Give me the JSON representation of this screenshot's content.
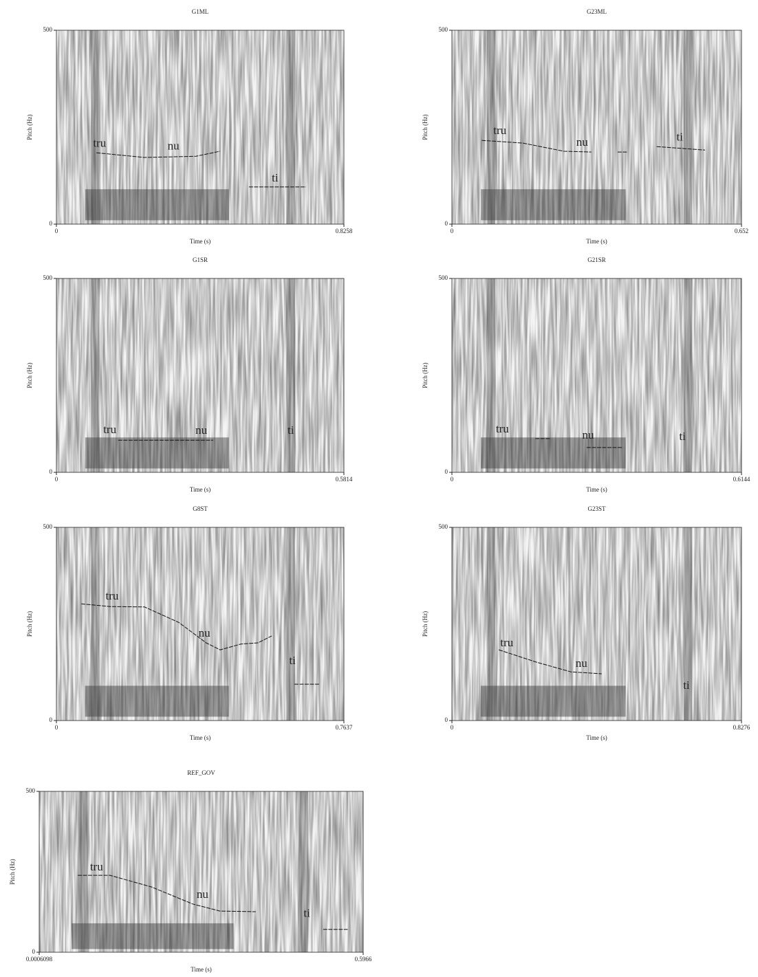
{
  "chart_data": [
    {
      "type": "line",
      "title": "G1ML",
      "xlabel": "Time (s)",
      "ylabel": "Pitch (Hz)",
      "xlim": [
        0,
        0.8258
      ],
      "xticks": [
        0,
        0.8258
      ],
      "ylim": [
        0,
        500
      ],
      "yticks": [
        0,
        500
      ],
      "x": [
        0.115,
        0.253,
        0.401,
        0.47,
        null,
        0.553,
        0.717
      ],
      "values": [
        184,
        172,
        175,
        188,
        null,
        96,
        96
      ],
      "annotations": [
        {
          "text": "tru",
          "x": 0.124,
          "y": 206
        },
        {
          "text": "nu",
          "x": 0.336,
          "y": 199
        },
        {
          "text": "ti",
          "x": 0.628,
          "y": 117
        }
      ]
    },
    {
      "type": "line",
      "title": "G23ML",
      "xlabel": "Time (s)",
      "ylabel": "Pitch (Hz)",
      "xlim": [
        0,
        0.652
      ],
      "xticks": [
        0,
        0.652
      ],
      "ylim": [
        0,
        500
      ],
      "yticks": [
        0,
        500
      ],
      "x": [
        0.067,
        0.16,
        0.252,
        0.314,
        null,
        0.373,
        0.395,
        null,
        0.461,
        0.57
      ],
      "values": [
        216,
        209,
        188,
        186,
        null,
        186,
        186,
        null,
        200,
        191
      ],
      "annotations": [
        {
          "text": "tru",
          "x": 0.108,
          "y": 239
        },
        {
          "text": "nu",
          "x": 0.293,
          "y": 209
        },
        {
          "text": "ti",
          "x": 0.513,
          "y": 222
        }
      ]
    },
    {
      "type": "line",
      "title": "G1SR",
      "xlabel": "Time (s)",
      "ylabel": "Pitch (Hz)",
      "xlim": [
        0,
        0.5814
      ],
      "xticks": [
        0,
        0.5814
      ],
      "ylim": [
        0,
        500
      ],
      "yticks": [
        0,
        500
      ],
      "x": [
        0.125,
        0.22,
        0.317
      ],
      "values": [
        83,
        83,
        83
      ],
      "annotations": [
        {
          "text": "tru",
          "x": 0.108,
          "y": 108
        },
        {
          "text": "nu",
          "x": 0.293,
          "y": 106
        },
        {
          "text": "ti",
          "x": 0.474,
          "y": 106
        }
      ]
    },
    {
      "type": "line",
      "title": "G21SR",
      "xlabel": "Time (s)",
      "ylabel": "Pitch (Hz)",
      "xlim": [
        0,
        0.6144
      ],
      "xticks": [
        0,
        0.6144
      ],
      "ylim": [
        0,
        500
      ],
      "yticks": [
        0,
        500
      ],
      "x": [
        0.177,
        0.209,
        null,
        0.286,
        0.363
      ],
      "values": [
        87,
        87,
        null,
        64,
        64
      ],
      "annotations": [
        {
          "text": "tru",
          "x": 0.107,
          "y": 110
        },
        {
          "text": "nu",
          "x": 0.289,
          "y": 94
        },
        {
          "text": "ti",
          "x": 0.489,
          "y": 90
        }
      ]
    },
    {
      "type": "line",
      "title": "G8ST",
      "xlabel": "Time (s)",
      "ylabel": "Pitch (Hz)",
      "xlim": [
        0,
        0.7637
      ],
      "xticks": [
        0,
        0.7637
      ],
      "ylim": [
        0,
        500
      ],
      "yticks": [
        0,
        500
      ],
      "x": [
        0.066,
        0.143,
        0.234,
        0.325,
        0.398,
        0.435,
        0.49,
        0.535,
        0.572,
        null,
        0.632,
        0.7
      ],
      "values": [
        302,
        295,
        294,
        254,
        201,
        183,
        198,
        201,
        219,
        null,
        94,
        94
      ],
      "annotations": [
        {
          "text": "tru",
          "x": 0.148,
          "y": 320
        },
        {
          "text": "nu",
          "x": 0.393,
          "y": 224
        },
        {
          "text": "ti",
          "x": 0.627,
          "y": 153
        }
      ]
    },
    {
      "type": "line",
      "title": "G23ST",
      "xlabel": "Time (s)",
      "ylabel": "Pitch (Hz)",
      "xlim": [
        0,
        0.8276
      ],
      "xticks": [
        0,
        0.8276
      ],
      "ylim": [
        0,
        500
      ],
      "yticks": [
        0,
        500
      ],
      "x": [
        0.134,
        0.242,
        0.34,
        0.428
      ],
      "values": [
        183,
        151,
        126,
        121
      ],
      "annotations": [
        {
          "text": "tru",
          "x": 0.157,
          "y": 199
        },
        {
          "text": "nu",
          "x": 0.37,
          "y": 146
        },
        {
          "text": "ti",
          "x": 0.67,
          "y": 89
        }
      ]
    },
    {
      "type": "line",
      "title": "REF_GOV",
      "xlabel": "Time (s)",
      "ylabel": "Pitch (Hz)",
      "xlim": [
        0.0006098,
        0.5966
      ],
      "xticks": [
        0.0006098,
        0.5966
      ],
      "ylim": [
        0,
        500
      ],
      "yticks": [
        0,
        500
      ],
      "x": [
        0.0715,
        0.131,
        0.207,
        0.283,
        0.333,
        0.399,
        null,
        0.523,
        0.568
      ],
      "values": [
        239,
        239,
        203,
        150,
        128,
        126,
        null,
        71,
        71
      ],
      "annotations": [
        {
          "text": "tru",
          "x": 0.106,
          "y": 263
        },
        {
          "text": "nu",
          "x": 0.301,
          "y": 177
        },
        {
          "text": "ti",
          "x": 0.493,
          "y": 118
        }
      ]
    }
  ]
}
